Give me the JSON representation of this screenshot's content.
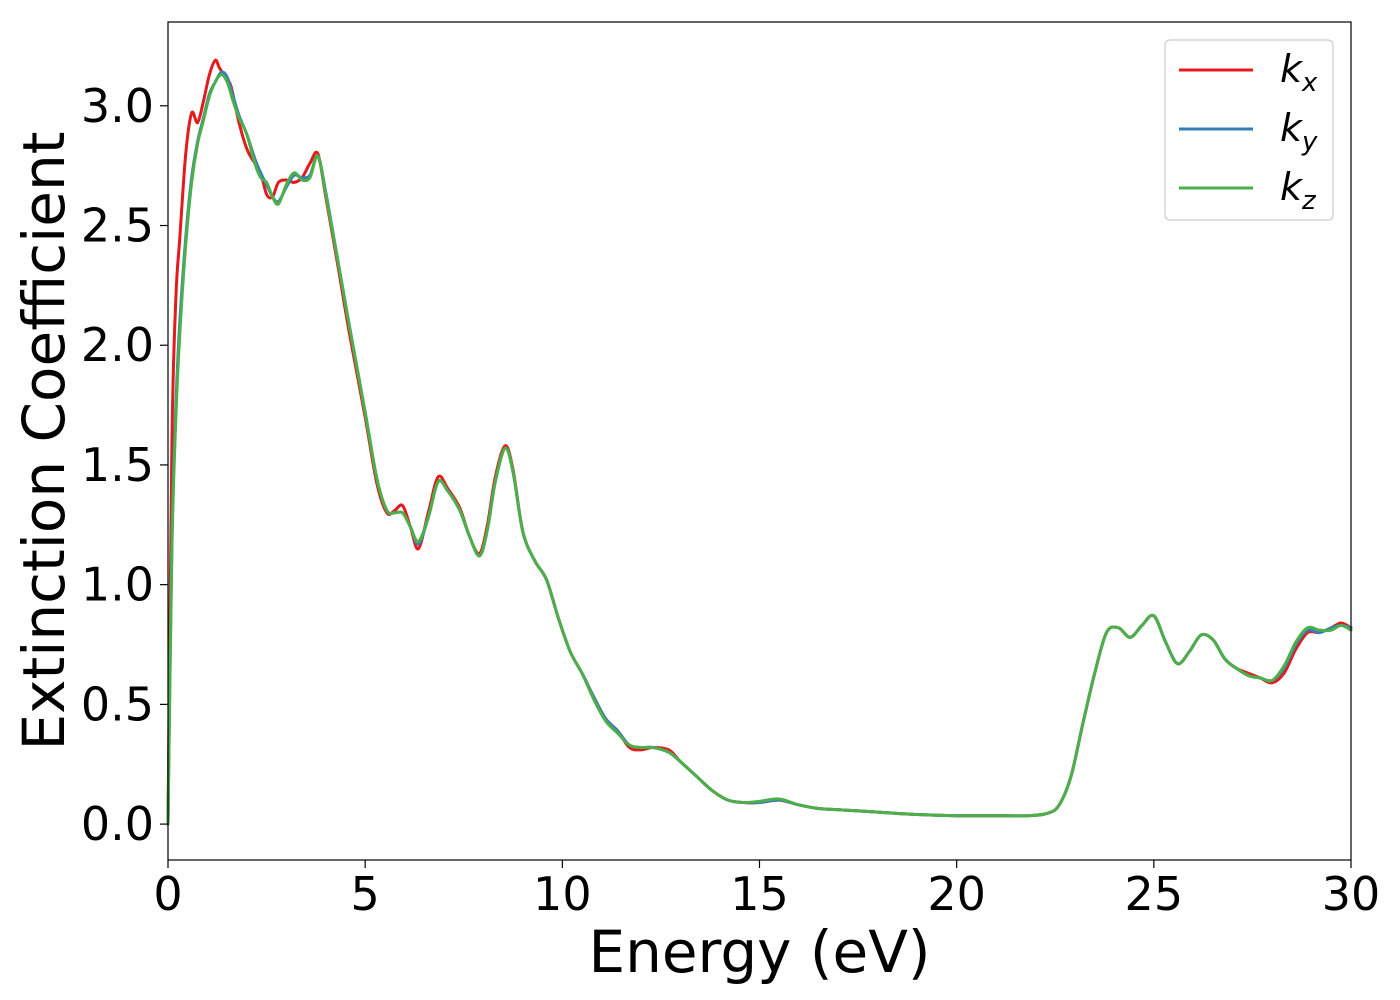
{
  "chart_data": {
    "type": "line",
    "xlabel": "Energy (eV)",
    "ylabel": "Extinction Coefficient",
    "xlim": [
      0,
      30
    ],
    "ylim": [
      -0.15,
      3.35
    ],
    "xticks": [
      0,
      5,
      10,
      15,
      20,
      25,
      30
    ],
    "xtick_labels": [
      "0",
      "5",
      "10",
      "15",
      "20",
      "25",
      "30"
    ],
    "yticks": [
      0.0,
      0.5,
      1.0,
      1.5,
      2.0,
      2.5,
      3.0
    ],
    "ytick_labels": [
      "0.0",
      "0.5",
      "1.0",
      "1.5",
      "2.0",
      "2.5",
      "3.0"
    ],
    "grid": false,
    "legend_position": "top-right",
    "series": [
      {
        "name": "k_x",
        "legend_base": "k",
        "legend_sub": "x",
        "color": "#e41a1c",
        "x": [
          0,
          0.1,
          0.2,
          0.3,
          0.45,
          0.6,
          0.75,
          0.9,
          1.05,
          1.2,
          1.3,
          1.45,
          1.6,
          1.8,
          2.0,
          2.2,
          2.35,
          2.5,
          2.65,
          2.8,
          3.0,
          3.2,
          3.4,
          3.6,
          3.8,
          4.0,
          4.3,
          4.6,
          5.0,
          5.3,
          5.55,
          5.75,
          5.95,
          6.15,
          6.35,
          6.6,
          6.85,
          7.1,
          7.4,
          7.65,
          7.9,
          8.1,
          8.3,
          8.55,
          8.75,
          9.0,
          9.3,
          9.6,
          9.9,
          10.2,
          10.5,
          10.8,
          11.1,
          11.4,
          11.7,
          12.0,
          12.3,
          12.7,
          13.0,
          13.4,
          13.8,
          14.2,
          14.6,
          15.0,
          15.5,
          16.0,
          16.5,
          17.0,
          17.5,
          18.0,
          19.0,
          20.0,
          21.0,
          21.8,
          22.3,
          22.6,
          22.9,
          23.2,
          23.5,
          23.8,
          24.1,
          24.4,
          24.7,
          25.0,
          25.3,
          25.6,
          25.9,
          26.2,
          26.5,
          26.8,
          27.1,
          27.4,
          27.7,
          28.0,
          28.3,
          28.6,
          28.9,
          29.2,
          29.5,
          29.75,
          30.0
        ],
        "values": [
          0.0,
          1.6,
          2.2,
          2.45,
          2.8,
          2.97,
          2.93,
          3.02,
          3.13,
          3.19,
          3.16,
          3.12,
          3.08,
          2.93,
          2.82,
          2.76,
          2.72,
          2.63,
          2.62,
          2.68,
          2.69,
          2.68,
          2.7,
          2.76,
          2.8,
          2.62,
          2.34,
          2.05,
          1.7,
          1.42,
          1.3,
          1.31,
          1.33,
          1.24,
          1.15,
          1.3,
          1.45,
          1.4,
          1.32,
          1.2,
          1.13,
          1.25,
          1.45,
          1.58,
          1.48,
          1.22,
          1.1,
          1.02,
          0.86,
          0.72,
          0.63,
          0.53,
          0.44,
          0.39,
          0.32,
          0.31,
          0.32,
          0.31,
          0.26,
          0.2,
          0.14,
          0.1,
          0.09,
          0.09,
          0.1,
          0.08,
          0.065,
          0.06,
          0.055,
          0.05,
          0.04,
          0.035,
          0.035,
          0.035,
          0.045,
          0.08,
          0.2,
          0.42,
          0.63,
          0.8,
          0.82,
          0.78,
          0.83,
          0.87,
          0.76,
          0.67,
          0.72,
          0.79,
          0.77,
          0.69,
          0.65,
          0.63,
          0.61,
          0.59,
          0.63,
          0.73,
          0.8,
          0.8,
          0.82,
          0.84,
          0.82
        ]
      },
      {
        "name": "k_y",
        "legend_base": "k",
        "legend_sub": "y",
        "color": "#377eb8",
        "x": [
          0,
          0.1,
          0.2,
          0.3,
          0.45,
          0.6,
          0.75,
          0.9,
          1.05,
          1.2,
          1.35,
          1.5,
          1.65,
          1.8,
          2.0,
          2.2,
          2.35,
          2.5,
          2.65,
          2.8,
          3.0,
          3.2,
          3.4,
          3.6,
          3.8,
          4.0,
          4.3,
          4.6,
          5.0,
          5.3,
          5.55,
          5.75,
          5.95,
          6.15,
          6.35,
          6.6,
          6.85,
          7.1,
          7.4,
          7.65,
          7.9,
          8.1,
          8.3,
          8.55,
          8.75,
          9.0,
          9.3,
          9.6,
          9.9,
          10.2,
          10.5,
          10.8,
          11.1,
          11.4,
          11.7,
          12.0,
          12.3,
          12.7,
          13.0,
          13.4,
          13.8,
          14.2,
          14.6,
          15.0,
          15.5,
          16.0,
          16.5,
          17.0,
          17.5,
          18.0,
          19.0,
          20.0,
          21.0,
          21.8,
          22.3,
          22.6,
          22.9,
          23.2,
          23.5,
          23.8,
          24.1,
          24.4,
          24.7,
          25.0,
          25.3,
          25.6,
          25.9,
          26.2,
          26.5,
          26.8,
          27.1,
          27.4,
          27.7,
          28.0,
          28.3,
          28.6,
          28.9,
          29.2,
          29.5,
          29.75,
          30.0
        ],
        "values": [
          0.0,
          1.2,
          1.75,
          2.1,
          2.45,
          2.7,
          2.85,
          2.95,
          3.05,
          3.1,
          3.14,
          3.12,
          3.04,
          2.96,
          2.88,
          2.78,
          2.72,
          2.67,
          2.62,
          2.6,
          2.66,
          2.71,
          2.7,
          2.71,
          2.79,
          2.64,
          2.36,
          2.08,
          1.72,
          1.44,
          1.31,
          1.3,
          1.3,
          1.24,
          1.17,
          1.28,
          1.43,
          1.39,
          1.31,
          1.2,
          1.12,
          1.23,
          1.43,
          1.57,
          1.47,
          1.22,
          1.1,
          1.02,
          0.86,
          0.72,
          0.63,
          0.53,
          0.44,
          0.39,
          0.33,
          0.32,
          0.32,
          0.3,
          0.26,
          0.2,
          0.14,
          0.1,
          0.09,
          0.09,
          0.1,
          0.08,
          0.065,
          0.06,
          0.055,
          0.05,
          0.04,
          0.035,
          0.035,
          0.035,
          0.045,
          0.08,
          0.2,
          0.42,
          0.63,
          0.8,
          0.82,
          0.78,
          0.83,
          0.87,
          0.76,
          0.67,
          0.72,
          0.79,
          0.77,
          0.69,
          0.65,
          0.62,
          0.61,
          0.6,
          0.65,
          0.75,
          0.81,
          0.8,
          0.82,
          0.83,
          0.82
        ]
      },
      {
        "name": "k_z",
        "legend_base": "k",
        "legend_sub": "z",
        "color": "#4daf4a",
        "x": [
          0,
          0.1,
          0.2,
          0.3,
          0.45,
          0.6,
          0.75,
          0.9,
          1.05,
          1.2,
          1.35,
          1.5,
          1.65,
          1.8,
          2.0,
          2.2,
          2.35,
          2.5,
          2.65,
          2.8,
          3.0,
          3.2,
          3.4,
          3.6,
          3.8,
          4.0,
          4.3,
          4.6,
          5.0,
          5.3,
          5.55,
          5.75,
          5.95,
          6.15,
          6.35,
          6.6,
          6.85,
          7.1,
          7.4,
          7.65,
          7.9,
          8.1,
          8.3,
          8.55,
          8.75,
          9.0,
          9.3,
          9.6,
          9.9,
          10.2,
          10.5,
          10.8,
          11.1,
          11.4,
          11.7,
          12.0,
          12.3,
          12.7,
          13.0,
          13.4,
          13.8,
          14.2,
          14.6,
          15.0,
          15.5,
          16.0,
          16.5,
          17.0,
          17.5,
          18.0,
          19.0,
          20.0,
          21.0,
          21.8,
          22.3,
          22.6,
          22.9,
          23.2,
          23.5,
          23.8,
          24.1,
          24.4,
          24.7,
          25.0,
          25.3,
          25.6,
          25.9,
          26.2,
          26.5,
          26.8,
          27.1,
          27.4,
          27.7,
          28.0,
          28.3,
          28.6,
          28.9,
          29.2,
          29.5,
          29.75,
          30.0
        ],
        "values": [
          0.0,
          1.15,
          1.7,
          2.05,
          2.42,
          2.68,
          2.84,
          2.94,
          3.04,
          3.1,
          3.13,
          3.1,
          3.02,
          2.95,
          2.88,
          2.76,
          2.7,
          2.68,
          2.62,
          2.59,
          2.67,
          2.72,
          2.69,
          2.7,
          2.79,
          2.63,
          2.36,
          2.08,
          1.72,
          1.44,
          1.31,
          1.3,
          1.3,
          1.24,
          1.18,
          1.28,
          1.43,
          1.39,
          1.31,
          1.2,
          1.12,
          1.23,
          1.43,
          1.57,
          1.47,
          1.22,
          1.1,
          1.02,
          0.86,
          0.72,
          0.63,
          0.52,
          0.43,
          0.38,
          0.33,
          0.32,
          0.32,
          0.3,
          0.26,
          0.2,
          0.14,
          0.1,
          0.09,
          0.095,
          0.105,
          0.08,
          0.065,
          0.06,
          0.055,
          0.05,
          0.04,
          0.035,
          0.035,
          0.035,
          0.045,
          0.08,
          0.2,
          0.42,
          0.63,
          0.8,
          0.82,
          0.78,
          0.83,
          0.87,
          0.76,
          0.67,
          0.72,
          0.79,
          0.77,
          0.69,
          0.65,
          0.62,
          0.61,
          0.6,
          0.66,
          0.76,
          0.82,
          0.81,
          0.81,
          0.83,
          0.81
        ]
      }
    ]
  }
}
